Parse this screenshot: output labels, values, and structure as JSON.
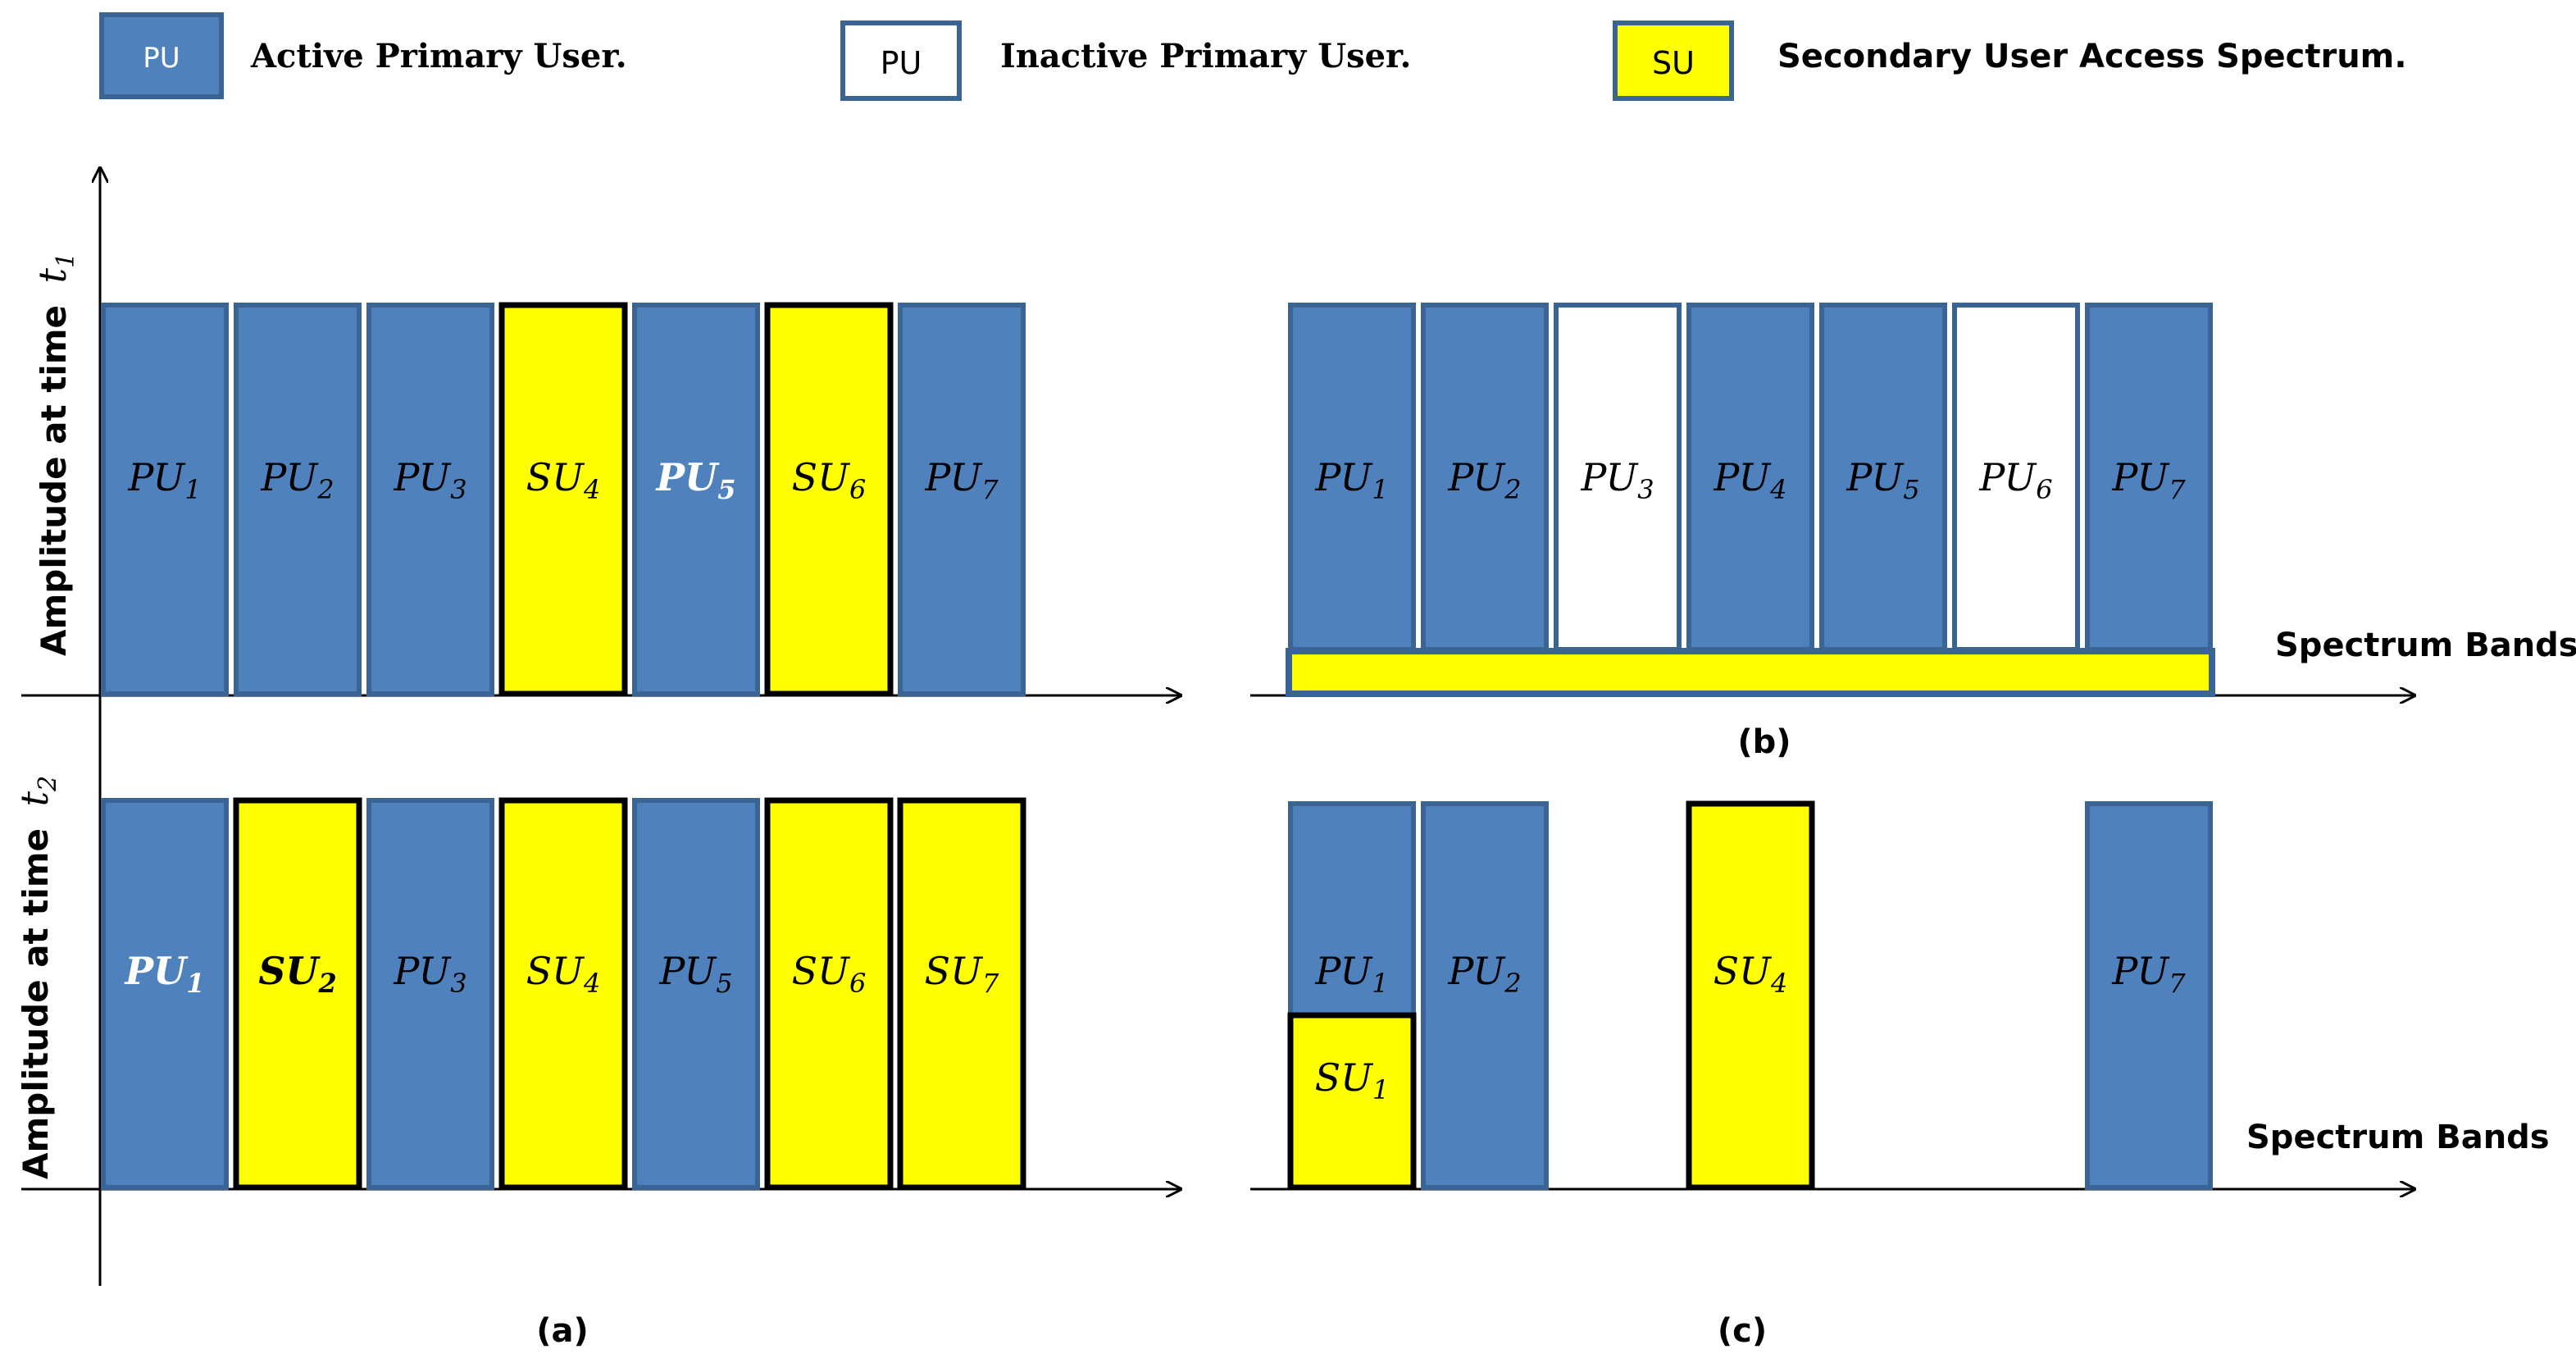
{
  "colors": {
    "active": "#4f81bd",
    "active_stroke": "#3a6494",
    "inactive_fill": "#ffffff",
    "su_fill": "#ffff00",
    "su_stroke": "#000000",
    "axis": "#000000",
    "white_text": "#ffffff",
    "dark_text": "#000000"
  },
  "legend": {
    "active": {
      "box": "PU",
      "text": "Active Primary User."
    },
    "inactive": {
      "box": "PU",
      "text": "Inactive Primary User."
    },
    "su": {
      "box": "SU",
      "text": "Secondary User Access Spectrum."
    }
  },
  "axis_labels": {
    "a_top_y": "Amplitude at time",
    "a_top_sub": "1",
    "a_bottom_y": "Amplitude at time",
    "a_bottom_sub": "2",
    "b_x": "Spectrum Bands",
    "c_x": "Spectrum Bands",
    "t_letter": "t"
  },
  "captions": {
    "a": "(a)",
    "b": "(b)",
    "c": "(c)"
  },
  "panels": {
    "a_top": [
      {
        "name": "PU",
        "sub": "1",
        "type": "active"
      },
      {
        "name": "PU",
        "sub": "2",
        "type": "active"
      },
      {
        "name": "PU",
        "sub": "3",
        "type": "active"
      },
      {
        "name": "SU",
        "sub": "4",
        "type": "su"
      },
      {
        "name": "PU",
        "sub": "5",
        "type": "active",
        "bold": true
      },
      {
        "name": "SU",
        "sub": "6",
        "type": "su"
      },
      {
        "name": "PU",
        "sub": "7",
        "type": "active"
      }
    ],
    "a_bottom": [
      {
        "name": "PU",
        "sub": "1",
        "type": "active",
        "bold": true
      },
      {
        "name": "SU",
        "sub": "2",
        "type": "su",
        "bold": true
      },
      {
        "name": "PU",
        "sub": "3",
        "type": "active"
      },
      {
        "name": "SU",
        "sub": "4",
        "type": "su"
      },
      {
        "name": "PU",
        "sub": "5",
        "type": "active"
      },
      {
        "name": "SU",
        "sub": "6",
        "type": "su"
      },
      {
        "name": "SU",
        "sub": "7",
        "type": "su"
      }
    ],
    "b": [
      {
        "name": "PU",
        "sub": "1",
        "type": "active"
      },
      {
        "name": "PU",
        "sub": "2",
        "type": "active"
      },
      {
        "name": "PU",
        "sub": "3",
        "type": "inactive"
      },
      {
        "name": "PU",
        "sub": "4",
        "type": "active"
      },
      {
        "name": "PU",
        "sub": "5",
        "type": "active"
      },
      {
        "name": "PU",
        "sub": "6",
        "type": "inactive"
      },
      {
        "name": "PU",
        "sub": "7",
        "type": "active"
      }
    ],
    "c": [
      {
        "name": "PU",
        "sub": "1",
        "type": "active"
      },
      {
        "name": "PU",
        "sub": "2",
        "type": "active"
      },
      {
        "name": "",
        "sub": "",
        "type": "empty"
      },
      {
        "name": "SU",
        "sub": "4",
        "type": "su"
      },
      {
        "name": "",
        "sub": "",
        "type": "empty"
      },
      {
        "name": "",
        "sub": "",
        "type": "empty"
      },
      {
        "name": "PU",
        "sub": "7",
        "type": "active"
      }
    ],
    "c_overlay": {
      "name": "SU",
      "sub": "1"
    }
  }
}
